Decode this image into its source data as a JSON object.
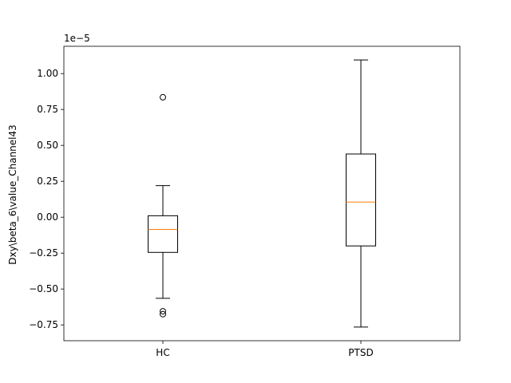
{
  "chart_data": {
    "type": "box",
    "title": "",
    "xlabel": "",
    "ylabel": "Dxy\\beta_6\\value_Channel43",
    "y_scale_label": "1e−5",
    "ylim": [
      -0.86,
      1.19
    ],
    "yticks": [
      {
        "value": -0.75,
        "label": "−0.75"
      },
      {
        "value": -0.5,
        "label": "−0.50"
      },
      {
        "value": -0.25,
        "label": "−0.25"
      },
      {
        "value": 0.0,
        "label": "0.00"
      },
      {
        "value": 0.25,
        "label": "0.25"
      },
      {
        "value": 0.5,
        "label": "0.50"
      },
      {
        "value": 0.75,
        "label": "0.75"
      },
      {
        "value": 1.0,
        "label": "1.00"
      }
    ],
    "grid": false,
    "colors": {
      "box": "#000000",
      "median": "#ff7f0e",
      "outlier": "#000000"
    },
    "categories": [
      "HC",
      "PTSD"
    ],
    "boxes": [
      {
        "label": "HC",
        "whisker_low": -0.565,
        "q1": -0.245,
        "median": -0.085,
        "q3": 0.01,
        "whisker_high": 0.22,
        "outliers": [
          0.835,
          -0.655,
          -0.675
        ]
      },
      {
        "label": "PTSD",
        "whisker_low": -0.765,
        "q1": -0.2,
        "median": 0.105,
        "q3": 0.44,
        "whisker_high": 1.095,
        "outliers": []
      }
    ]
  }
}
